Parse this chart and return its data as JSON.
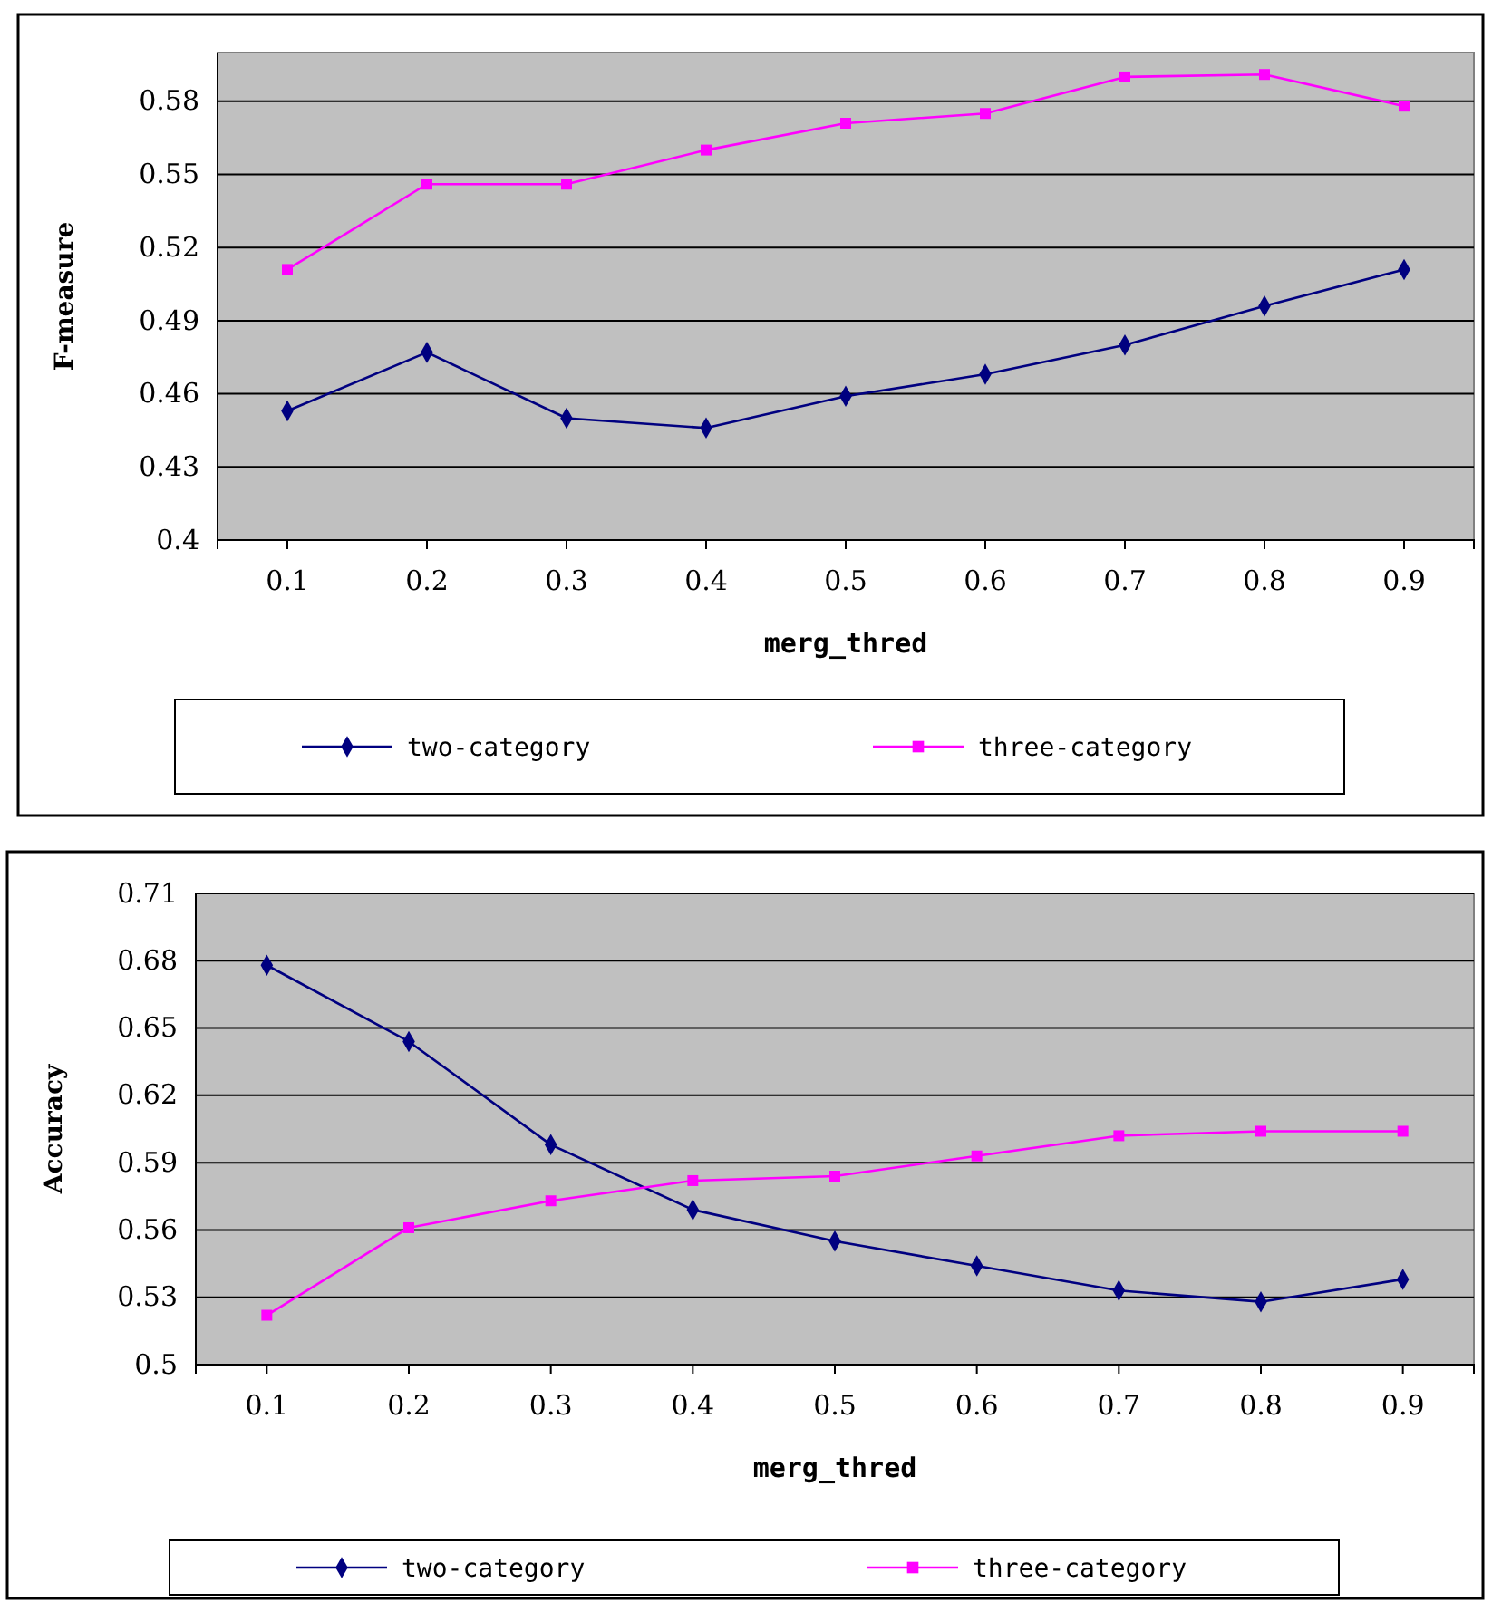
{
  "chart_data": [
    {
      "type": "line",
      "xlabel": "merg_thred",
      "ylabel": "F-measure",
      "categories": [
        "0.1",
        "0.2",
        "0.3",
        "0.4",
        "0.5",
        "0.6",
        "0.7",
        "0.8",
        "0.9"
      ],
      "series": [
        {
          "name": "two-category",
          "color": "#000080",
          "marker": "diamond",
          "values": [
            0.453,
            0.477,
            0.45,
            0.446,
            0.459,
            0.468,
            0.48,
            0.496,
            0.511
          ]
        },
        {
          "name": "three-category",
          "color": "#ff00ff",
          "marker": "square",
          "values": [
            0.511,
            0.546,
            0.546,
            0.56,
            0.571,
            0.575,
            0.59,
            0.591,
            0.578
          ]
        }
      ],
      "ylim": [
        0.4,
        0.6
      ],
      "yticks": [
        0.4,
        0.43,
        0.46,
        0.49,
        0.52,
        0.55,
        0.58
      ],
      "grid": "y",
      "legend": "bottom"
    },
    {
      "type": "line",
      "xlabel": "merg_thred",
      "ylabel": "Accuracy",
      "categories": [
        "0.1",
        "0.2",
        "0.3",
        "0.4",
        "0.5",
        "0.6",
        "0.7",
        "0.8",
        "0.9"
      ],
      "series": [
        {
          "name": "two-category",
          "color": "#000080",
          "marker": "diamond",
          "values": [
            0.678,
            0.644,
            0.598,
            0.569,
            0.555,
            0.544,
            0.533,
            0.528,
            0.538
          ]
        },
        {
          "name": "three-category",
          "color": "#ff00ff",
          "marker": "square",
          "values": [
            0.522,
            0.561,
            0.573,
            0.582,
            0.584,
            0.593,
            0.602,
            0.604,
            0.604
          ]
        }
      ],
      "ylim": [
        0.5,
        0.71
      ],
      "yticks": [
        0.5,
        0.53,
        0.56,
        0.59,
        0.62,
        0.65,
        0.68,
        0.71
      ],
      "grid": "y",
      "legend": "bottom"
    }
  ]
}
